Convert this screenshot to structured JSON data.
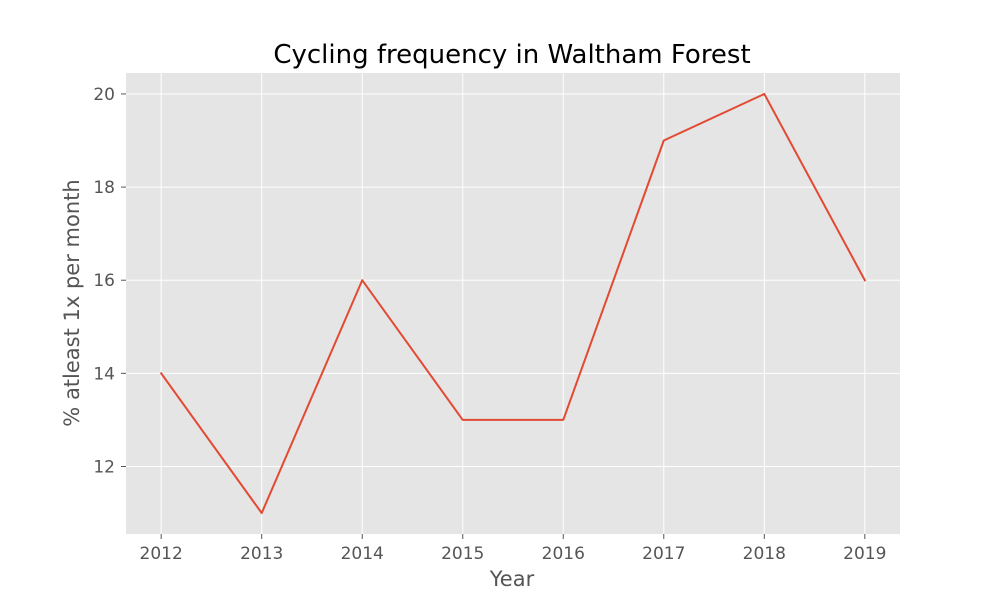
{
  "chart_data": {
    "type": "line",
    "title": "Cycling frequency in Waltham Forest",
    "xlabel": "Year",
    "ylabel": "% atleast 1x per month",
    "x": [
      2012,
      2013,
      2014,
      2015,
      2016,
      2017,
      2018,
      2019
    ],
    "series": [
      {
        "values": [
          14,
          11,
          16,
          13,
          13,
          19,
          20,
          16
        ],
        "color": "#e24a33"
      }
    ],
    "xticks": [
      "2012",
      "2013",
      "2014",
      "2015",
      "2016",
      "2017",
      "2018",
      "2019"
    ],
    "yticks": [
      "12",
      "14",
      "16",
      "18",
      "20"
    ],
    "ylim": [
      10.55,
      20.45
    ],
    "xlim": [
      2011.65,
      2019.35
    ],
    "grid": true,
    "legend": "none",
    "style": {
      "background": "#e5e5e5",
      "grid_color": "#ffffff",
      "tick_color": "#555555"
    }
  }
}
